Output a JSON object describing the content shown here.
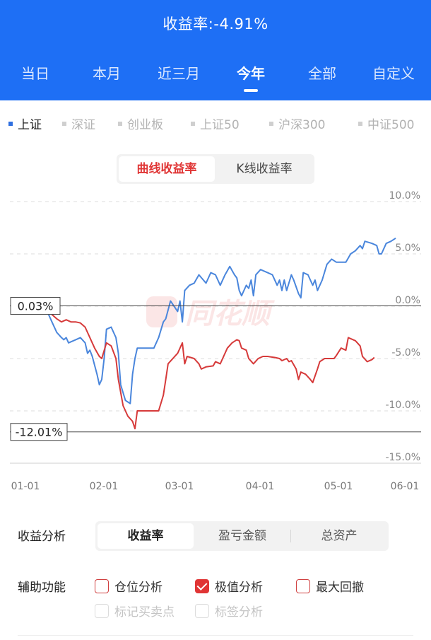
{
  "header": {
    "title": "收益率:-4.91%",
    "period_tabs": [
      {
        "label": "当日",
        "active": false
      },
      {
        "label": "本月",
        "active": false
      },
      {
        "label": "近三月",
        "active": false
      },
      {
        "label": "今年",
        "active": true
      },
      {
        "label": "全部",
        "active": false
      },
      {
        "label": "自定义",
        "active": false
      }
    ]
  },
  "indices": [
    {
      "label": "上证",
      "active": true
    },
    {
      "label": "深证",
      "active": false
    },
    {
      "label": "创业板",
      "active": false
    },
    {
      "label": "上证50",
      "active": false
    },
    {
      "label": "沪深300",
      "active": false
    },
    {
      "label": "中证500",
      "active": false
    }
  ],
  "chart_mode": {
    "options": [
      {
        "label": "曲线收益率",
        "active": true
      },
      {
        "label": "K线收益率",
        "active": false
      }
    ]
  },
  "chart_data": {
    "type": "line",
    "watermark": "同花顺",
    "y_ticks": [
      "10.0%",
      "5.0%",
      "0.0%",
      "-5.0%",
      "-10.0%",
      "-15.0%"
    ],
    "x_ticks": [
      "01-01",
      "02-01",
      "03-01",
      "04-01",
      "05-01",
      "06-01"
    ],
    "ylim": [
      -15,
      10
    ],
    "x_range": [
      0,
      155
    ],
    "max_label": "0.03%",
    "min_label": "-12.01%",
    "max_value": 0.03,
    "min_value": -12.01,
    "colors": {
      "index": "#4a86dc",
      "return": "#d63a3a"
    },
    "series": [
      {
        "role": "index",
        "points": [
          [
            8,
            -0.5
          ],
          [
            10,
            -1.5
          ],
          [
            12,
            -2.5
          ],
          [
            14,
            -3
          ],
          [
            15,
            -3.2
          ],
          [
            16,
            -3
          ],
          [
            17,
            -3.5
          ],
          [
            20,
            -3.2
          ],
          [
            22,
            -3
          ],
          [
            24,
            -3.5
          ],
          [
            25,
            -4.5
          ],
          [
            26,
            -4.2
          ],
          [
            27,
            -4.8
          ],
          [
            29,
            -6.5
          ],
          [
            30,
            -7.5
          ],
          [
            31,
            -7
          ],
          [
            32,
            -5
          ],
          [
            33,
            -2.2
          ],
          [
            35,
            -2
          ],
          [
            37,
            -3
          ],
          [
            38,
            -4.5
          ],
          [
            39,
            -7.5
          ],
          [
            41,
            -9
          ],
          [
            43,
            -9.3
          ],
          [
            44,
            -6.5
          ],
          [
            45,
            -5
          ],
          [
            46,
            -4
          ],
          [
            53,
            -4
          ],
          [
            55,
            -3
          ],
          [
            57,
            -1.5
          ],
          [
            58,
            -1.2
          ],
          [
            60,
            0.5
          ],
          [
            63,
            -0.5
          ],
          [
            64,
            0.5
          ],
          [
            65,
            -1.5
          ],
          [
            66,
            1.5
          ],
          [
            68,
            2
          ],
          [
            70,
            2.2
          ],
          [
            72,
            3
          ],
          [
            75,
            2.2
          ],
          [
            77,
            3.2
          ],
          [
            79,
            3
          ],
          [
            81,
            2
          ],
          [
            83,
            3
          ],
          [
            85,
            3.8
          ],
          [
            87,
            3
          ],
          [
            88,
            2.7
          ],
          [
            89,
            1.5
          ],
          [
            90,
            1
          ],
          [
            92,
            2
          ],
          [
            93,
            1.7
          ],
          [
            94,
            2.5
          ],
          [
            95,
            1
          ],
          [
            96,
            3
          ],
          [
            98,
            3.5
          ],
          [
            101,
            3.2
          ],
          [
            103,
            3
          ],
          [
            105,
            2
          ],
          [
            106,
            2.5
          ],
          [
            107,
            1.5
          ],
          [
            108,
            2.5
          ],
          [
            109,
            1.5
          ],
          [
            111,
            3
          ],
          [
            112,
            2.5
          ],
          [
            114,
            1.2
          ],
          [
            115,
            0.8
          ],
          [
            116,
            3.2
          ],
          [
            118,
            3
          ],
          [
            120,
            2
          ],
          [
            121,
            2.5
          ],
          [
            122,
            1.5
          ],
          [
            124,
            2.5
          ],
          [
            126,
            4
          ],
          [
            128,
            4.5
          ],
          [
            130,
            4.2
          ],
          [
            134,
            4.2
          ],
          [
            136,
            5
          ],
          [
            138,
            5.3
          ],
          [
            140,
            5.8
          ],
          [
            141,
            5.5
          ],
          [
            142,
            6.2
          ],
          [
            145,
            6
          ],
          [
            147,
            5.8
          ],
          [
            148,
            5
          ],
          [
            149,
            5
          ],
          [
            151,
            6
          ],
          [
            153,
            6.2
          ],
          [
            155,
            6.5
          ]
        ]
      },
      {
        "role": "return",
        "points": [
          [
            8,
            -0.3
          ],
          [
            10,
            -0.8
          ],
          [
            12,
            -1.2
          ],
          [
            14,
            -1.5
          ],
          [
            16,
            -1.3
          ],
          [
            18,
            -1.5
          ],
          [
            20,
            -1.5
          ],
          [
            22,
            -1.6
          ],
          [
            24,
            -2
          ],
          [
            26,
            -3
          ],
          [
            28,
            -4
          ],
          [
            30,
            -4.8
          ],
          [
            31,
            -5
          ],
          [
            33,
            -3.5
          ],
          [
            35,
            -3.8
          ],
          [
            37,
            -5
          ],
          [
            38,
            -7
          ],
          [
            40,
            -9.5
          ],
          [
            42,
            -10.5
          ],
          [
            44,
            -11
          ],
          [
            45,
            -11.7
          ],
          [
            46,
            -10
          ],
          [
            53,
            -10
          ],
          [
            55,
            -10
          ],
          [
            57,
            -8.5
          ],
          [
            58,
            -7
          ],
          [
            59,
            -5.5
          ],
          [
            61,
            -5
          ],
          [
            63,
            -4.5
          ],
          [
            65,
            -3.5
          ],
          [
            66,
            -5.5
          ],
          [
            67,
            -4.8
          ],
          [
            70,
            -5
          ],
          [
            72,
            -5.5
          ],
          [
            73,
            -6
          ],
          [
            75,
            -5.8
          ],
          [
            78,
            -5.7
          ],
          [
            79,
            -5.3
          ],
          [
            81,
            -5.5
          ],
          [
            82,
            -5
          ],
          [
            84,
            -4
          ],
          [
            86,
            -3.5
          ],
          [
            88,
            -3.2
          ],
          [
            89,
            -3.3
          ],
          [
            90,
            -4
          ],
          [
            92,
            -4.2
          ],
          [
            93,
            -5
          ],
          [
            95,
            -5.5
          ],
          [
            97,
            -5
          ],
          [
            99,
            -4.8
          ],
          [
            101,
            -4.8
          ],
          [
            104,
            -4.9
          ],
          [
            106,
            -5
          ],
          [
            107,
            -5.2
          ],
          [
            109,
            -5
          ],
          [
            110,
            -5.3
          ],
          [
            111,
            -5.2
          ],
          [
            113,
            -6
          ],
          [
            114,
            -7
          ],
          [
            115,
            -6.3
          ],
          [
            117,
            -6.5
          ],
          [
            119,
            -7
          ],
          [
            120,
            -7.3
          ],
          [
            122,
            -6
          ],
          [
            123,
            -5.3
          ],
          [
            125,
            -5
          ],
          [
            129,
            -5
          ],
          [
            130,
            -4.7
          ],
          [
            132,
            -4
          ],
          [
            134,
            -4.2
          ],
          [
            135,
            -3
          ],
          [
            138,
            -3.3
          ],
          [
            140,
            -3.8
          ],
          [
            141,
            -4.8
          ],
          [
            143,
            -5.3
          ],
          [
            145,
            -5.1
          ],
          [
            146,
            -4.9
          ]
        ]
      }
    ]
  },
  "analysis": {
    "label": "收益分析",
    "tabs": [
      {
        "label": "收益率",
        "active": true
      },
      {
        "label": "盈亏金额",
        "active": false
      },
      {
        "label": "总资产",
        "active": false
      }
    ]
  },
  "aux": {
    "label": "辅助功能",
    "options": [
      {
        "label": "仓位分析",
        "checked": false,
        "disabled": false
      },
      {
        "label": "极值分析",
        "checked": true,
        "disabled": false
      },
      {
        "label": "最大回撤",
        "checked": false,
        "disabled": false
      },
      {
        "label": "标记买卖点",
        "checked": false,
        "disabled": true
      },
      {
        "label": "标签分析",
        "checked": false,
        "disabled": true
      }
    ]
  }
}
